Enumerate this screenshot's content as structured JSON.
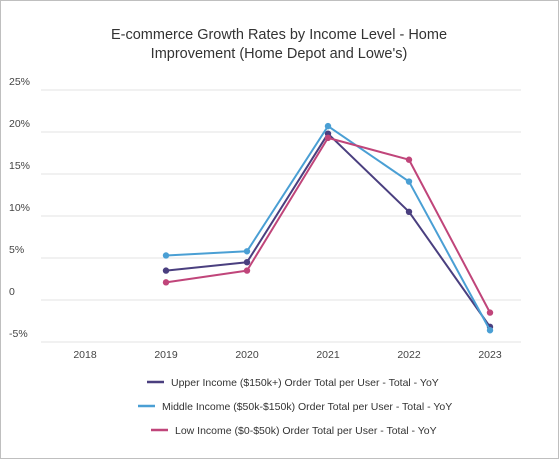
{
  "chart_data": {
    "type": "line",
    "title_lines": [
      "E-commerce Growth Rates by Income Level - Home",
      "Improvement (Home Depot and Lowe's)"
    ],
    "xlabel": "",
    "ylabel": "",
    "categories": [
      "2018",
      "2019",
      "2020",
      "2021",
      "2022",
      "2023"
    ],
    "yticks": [
      -5,
      0,
      5,
      10,
      15,
      20,
      25
    ],
    "ytick_labels": [
      "-5%",
      "0",
      "5%",
      "10%",
      "15%",
      "20%",
      "25%"
    ],
    "ylim": [
      -5,
      25
    ],
    "grid": "horizontal",
    "legend_position": "bottom",
    "series": [
      {
        "name": "Upper Income ($150k+) Order Total per User - Total - YoY",
        "color": "#4a3f7f",
        "values": [
          null,
          3.5,
          4.5,
          19.8,
          10.5,
          -3.2
        ]
      },
      {
        "name": "Middle Income ($50k-$150k) Order Total per User - Total - YoY",
        "color": "#4a9fd4",
        "values": [
          null,
          5.3,
          5.8,
          20.7,
          14.1,
          -3.6
        ]
      },
      {
        "name": "Low Income ($0-$50k) Order Total per User - Total - YoY",
        "color": "#c0457a",
        "values": [
          null,
          2.1,
          3.5,
          19.3,
          16.7,
          -1.5
        ]
      }
    ]
  }
}
